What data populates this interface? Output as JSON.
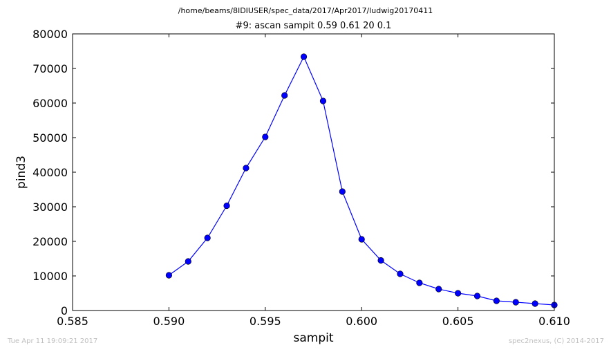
{
  "header": {
    "file_path": "/home/beams/8IDIUSER/spec_data/2017/Apr2017/ludwig20170411"
  },
  "footer": {
    "timestamp": "Tue Apr 11 19:09:21 2017",
    "credit": "spec2nexus, (C) 2014-2017"
  },
  "colors": {
    "series": "#0000ff",
    "axes": "#000000",
    "footer_text": "#c0c0c0"
  },
  "chart_data": {
    "type": "line",
    "title": "#9: ascan  sampit 0.59 0.61  20 0.1",
    "xlabel": "sampit",
    "ylabel": "pind3",
    "xlim": [
      0.585,
      0.61
    ],
    "ylim": [
      0,
      80000
    ],
    "xticks": [
      "0.585",
      "0.590",
      "0.595",
      "0.600",
      "0.605",
      "0.610"
    ],
    "yticks": [
      "0",
      "10000",
      "20000",
      "30000",
      "40000",
      "50000",
      "60000",
      "70000",
      "80000"
    ],
    "grid": false,
    "legend": "none",
    "marker": "circle",
    "series": [
      {
        "x": [
          0.59,
          0.591,
          0.592,
          0.593,
          0.594,
          0.595,
          0.596,
          0.597,
          0.598,
          0.599,
          0.6,
          0.601,
          0.602,
          0.603,
          0.604,
          0.605,
          0.606,
          0.607,
          0.608,
          0.609,
          0.61
        ],
        "y": [
          10200,
          14200,
          21000,
          30300,
          41200,
          50200,
          62200,
          73400,
          60600,
          34400,
          20600,
          14500,
          10600,
          8000,
          6200,
          5000,
          4200,
          2800,
          2400,
          2000,
          1600
        ]
      }
    ]
  }
}
